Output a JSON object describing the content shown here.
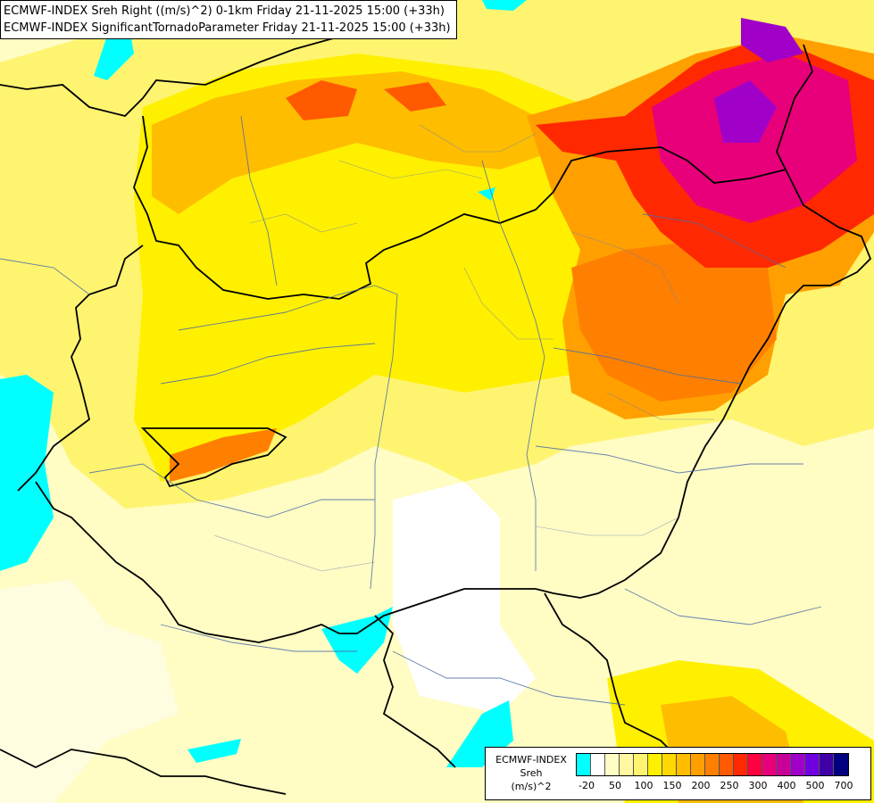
{
  "title": {
    "line1": "ECMWF-INDEX Sreh Right ((m/s)^2) 0-1km Friday 21-11-2025 15:00 (+33h)",
    "line2": "ECMWF-INDEX SignificantTornadoParameter Friday 21-11-2025 15:00 (+33h)"
  },
  "legend": {
    "label_line1": "ECMWF-INDEX",
    "label_line2": "Sreh",
    "label_line3": "(m/s)^2",
    "colors": [
      "#00ffff",
      "#ffffff",
      "#fffcc4",
      "#fff8a0",
      "#fff470",
      "#fff000",
      "#ffd800",
      "#ffbd00",
      "#ffa000",
      "#ff8000",
      "#ff5a00",
      "#ff2800",
      "#ff0040",
      "#e8007a",
      "#c80098",
      "#a000c8",
      "#7000e0",
      "#4000a8",
      "#000080"
    ],
    "ticks": [
      "-20",
      "50",
      "100",
      "150",
      "200",
      "250",
      "300",
      "400",
      "500",
      "700"
    ]
  }
}
